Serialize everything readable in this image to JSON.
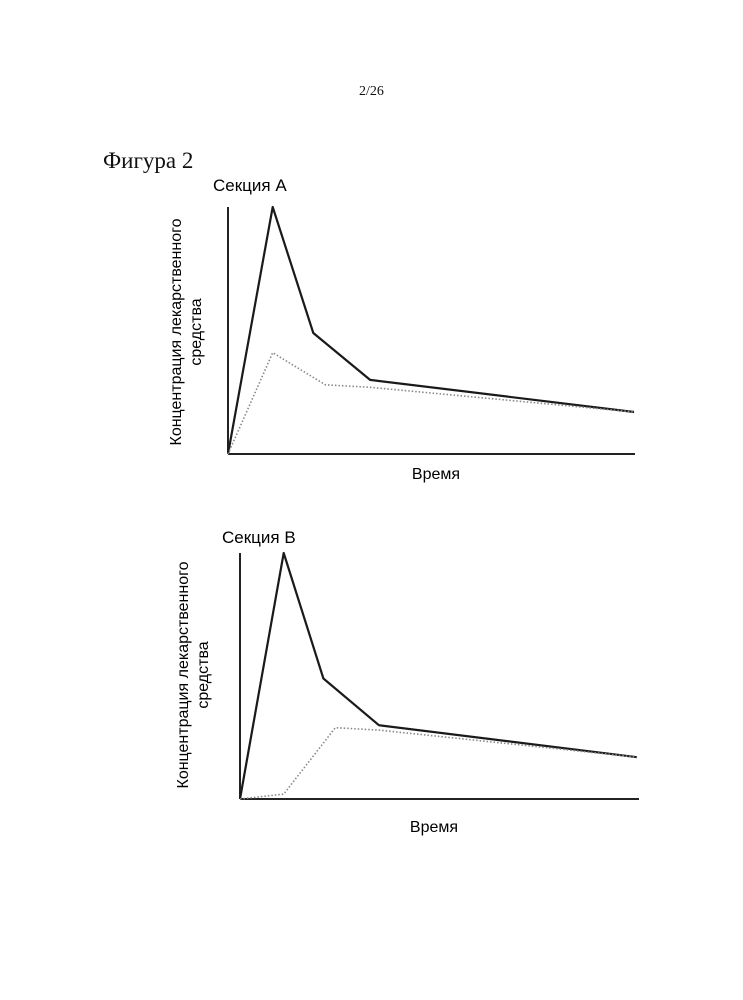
{
  "page": {
    "page_number": "2/26",
    "figure_title": "Фигура 2"
  },
  "colors": {
    "axis": "#222222",
    "series_solid": "#1a1a1a",
    "series_dotted": "#888888"
  },
  "chart_data": [
    {
      "type": "line",
      "title": "Секция A",
      "xlabel": "Время",
      "ylabel_lines": [
        "Концентрация лекарственного",
        "средства"
      ],
      "xlim": [
        0,
        100
      ],
      "ylim": [
        0,
        100
      ],
      "series": [
        {
          "style": "solid",
          "x": [
            0,
            11,
            21,
            35,
            100
          ],
          "y": [
            0,
            100,
            49,
            30,
            17
          ]
        },
        {
          "style": "dotted",
          "x": [
            0,
            11,
            24,
            35,
            100
          ],
          "y": [
            0,
            41,
            28,
            27,
            17
          ]
        }
      ]
    },
    {
      "type": "line",
      "title": "Секция B",
      "xlabel": "Время",
      "ylabel_lines": [
        "Концентрация лекарственного",
        "средства"
      ],
      "xlim": [
        0,
        100
      ],
      "ylim": [
        0,
        100
      ],
      "series": [
        {
          "style": "solid",
          "x": [
            0,
            11,
            21,
            35,
            100
          ],
          "y": [
            0,
            100,
            49,
            30,
            17
          ]
        },
        {
          "style": "dotted",
          "x": [
            0,
            11,
            24,
            35,
            100
          ],
          "y": [
            0,
            2,
            29,
            28,
            17
          ]
        }
      ]
    }
  ]
}
